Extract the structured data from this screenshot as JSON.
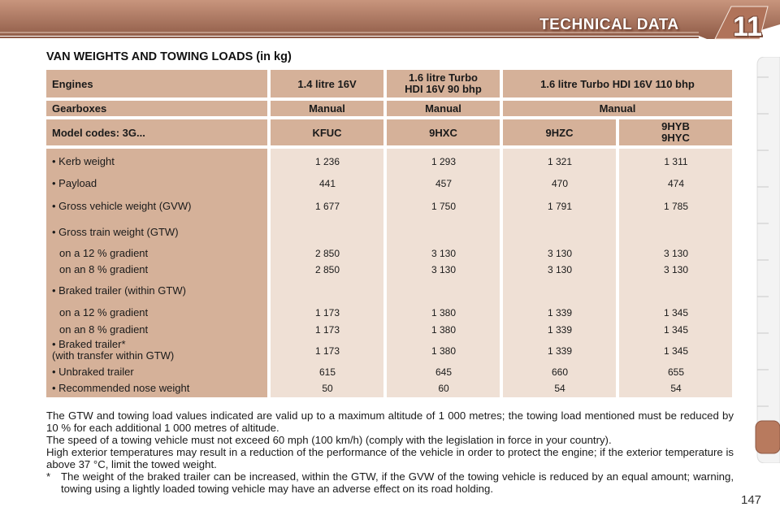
{
  "header": {
    "title": "TECHNICAL DATA",
    "chapter": "11"
  },
  "section_title": "VAN WEIGHTS AND TOWING LOADS (in kg)",
  "table": {
    "engines_label": "Engines",
    "engines": [
      "1.4 litre 16V",
      "1.6 litre Turbo\nHDI 16V 90 bhp",
      "1.6 litre Turbo HDI 16V 110 bhp"
    ],
    "gearboxes_label": "Gearboxes",
    "gearboxes": [
      "Manual",
      "Manual",
      "Manual"
    ],
    "model_label": "Model codes: 3G...",
    "models": [
      "KFUC",
      "9HXC",
      "9HZC",
      "9HYB\n9HYC"
    ],
    "rows": [
      {
        "label": "• Kerb weight",
        "values": [
          "1 236",
          "1 293",
          "1 321",
          "1 311"
        ]
      },
      {
        "label": "• Payload",
        "values": [
          "441",
          "457",
          "470",
          "474"
        ]
      },
      {
        "label": "• Gross vehicle weight (GVW)",
        "values": [
          "1 677",
          "1 750",
          "1 791",
          "1 785"
        ]
      },
      {
        "label": "• Gross train weight (GTW)",
        "values": [
          "",
          "",
          "",
          ""
        ]
      },
      {
        "label": "on a 12 % gradient",
        "values": [
          "2 850",
          "3 130",
          "3 130",
          "3 130"
        ]
      },
      {
        "label": "on an 8 % gradient",
        "values": [
          "2 850",
          "3 130",
          "3 130",
          "3 130"
        ]
      },
      {
        "label": "• Braked trailer (within GTW)",
        "values": [
          "",
          "",
          "",
          ""
        ]
      },
      {
        "label": "on a 12 % gradient",
        "values": [
          "1 173",
          "1 380",
          "1 339",
          "1 345"
        ]
      },
      {
        "label": "on an 8 % gradient",
        "values": [
          "1 173",
          "1 380",
          "1 339",
          "1 345"
        ]
      },
      {
        "label": "• Braked trailer*\n(with transfer within GTW)",
        "values": [
          "1 173",
          "1 380",
          "1 339",
          "1 345"
        ]
      },
      {
        "label": "• Unbraked trailer",
        "values": [
          "615",
          "645",
          "660",
          "655"
        ]
      },
      {
        "label": "• Recommended nose weight",
        "values": [
          "50",
          "60",
          "54",
          "54"
        ]
      }
    ]
  },
  "notes": [
    "The GTW and towing load values indicated are valid up to a maximum altitude of 1 000 metres; the towing load mentioned must be reduced by 10 % for each additional 1 000 metres of altitude.",
    "The speed of a towing vehicle must not exceed 60 mph (100 km/h) (comply with the legislation in force in your country).",
    "High exterior temperatures may result in a reduction of the performance of the vehicle in order to protect the engine; if the exterior temperature is above 37 °C, limit the towed weight."
  ],
  "footnote": {
    "marker": "*",
    "text": "The weight of the braked trailer can be increased, within the GTW, if the GVW of the towing vehicle is reduced by an equal amount; warning, towing using a lightly loaded towing vehicle may have an adverse effect on its road holding."
  },
  "page_number": "147",
  "colors": {
    "banner": "#9a6450",
    "header_cell": "#d5b199",
    "value_cell": "#efe0d5",
    "tab_active": "#b87a5e"
  }
}
